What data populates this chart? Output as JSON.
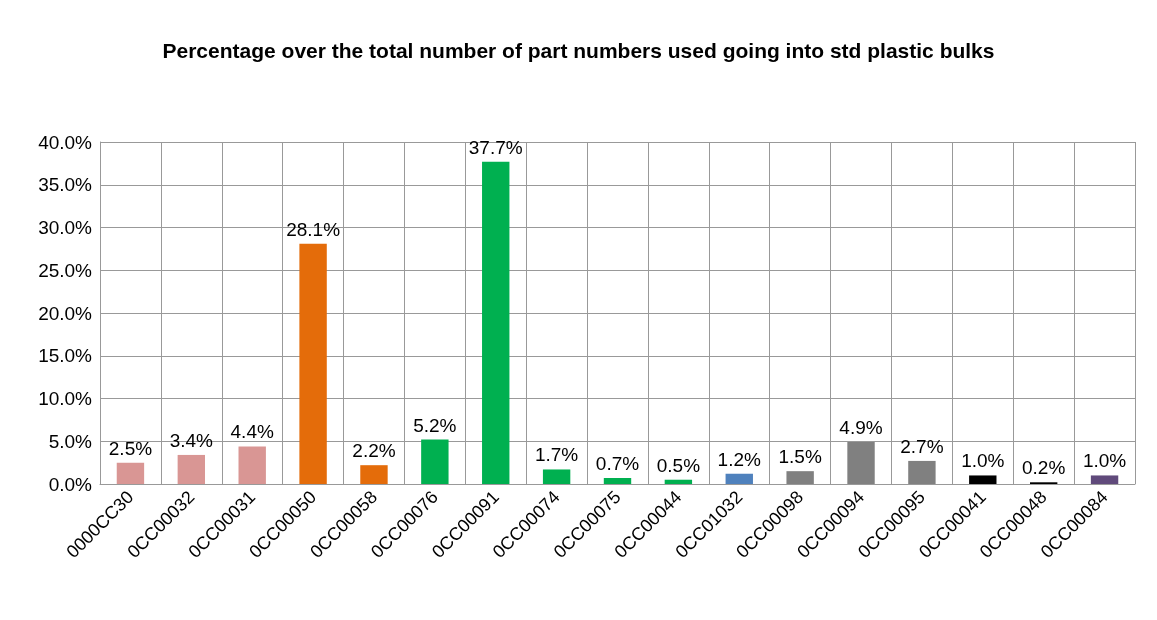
{
  "chart_data": {
    "type": "bar",
    "title": "Percentage over the total number of part numbers used going into std plastic bulks",
    "categories": [
      "0000CC30",
      "0CC00032",
      "0CC00031",
      "0CC00050",
      "0CC00058",
      "0CC00076",
      "0CC00091",
      "0CC00074",
      "0CC00075",
      "0CC00044",
      "0CC01032",
      "0CC00098",
      "0CC00094",
      "0CC00095",
      "0CC00041",
      "0CC00048",
      "0CC00084"
    ],
    "values": [
      2.5,
      3.4,
      4.4,
      28.1,
      2.2,
      5.2,
      37.7,
      1.7,
      0.7,
      0.5,
      1.2,
      1.5,
      4.9,
      2.7,
      1.0,
      0.2,
      1.0
    ],
    "value_labels": [
      "2.5%",
      "3.4%",
      "4.4%",
      "28.1%",
      "2.2%",
      "5.2%",
      "37.7%",
      "1.7%",
      "0.7%",
      "0.5%",
      "1.2%",
      "1.5%",
      "4.9%",
      "2.7%",
      "1.0%",
      "0.2%",
      "1.0%"
    ],
    "colors": [
      "#d99694",
      "#d99694",
      "#d99694",
      "#e46c0a",
      "#e46c0a",
      "#00b050",
      "#00b050",
      "#00b050",
      "#00b050",
      "#00b050",
      "#4f81bd",
      "#808080",
      "#808080",
      "#808080",
      "#000000",
      "#000000",
      "#604a7b"
    ],
    "ylim": [
      0,
      40
    ],
    "yticks": [
      {
        "value": 0,
        "label": "0.0%"
      },
      {
        "value": 5,
        "label": "5.0%"
      },
      {
        "value": 10,
        "label": "10.0%"
      },
      {
        "value": 15,
        "label": "15.0%"
      },
      {
        "value": 20,
        "label": "20.0%"
      },
      {
        "value": 25,
        "label": "25.0%"
      },
      {
        "value": 30,
        "label": "30.0%"
      },
      {
        "value": 35,
        "label": "35.0%"
      },
      {
        "value": 40,
        "label": "40.0%"
      }
    ],
    "grid": true
  }
}
